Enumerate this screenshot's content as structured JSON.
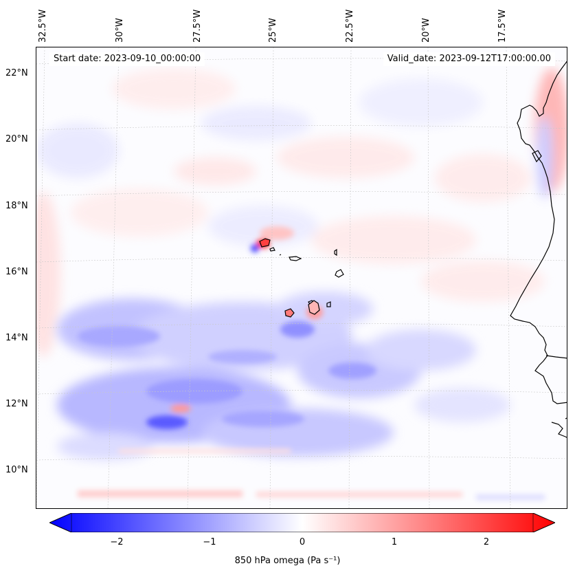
{
  "map": {
    "start_date": "Start date: 2023-09-10_00:00:00",
    "valid_date": "Valid_date: 2023-09-12T17:00:00.00",
    "lon_labels": [
      "32.5°W",
      "30°W",
      "27.5°W",
      "25°W",
      "22.5°W",
      "20°W",
      "17.5°W"
    ],
    "lat_labels": [
      "22°N",
      "20°N",
      "18°N",
      "16°N",
      "14°N",
      "12°N",
      "10°N"
    ],
    "colormap": "bwr",
    "colors": {
      "negative": "#0000ff",
      "zero": "#ffffff",
      "positive": "#ff0000",
      "coast": "#000000"
    }
  },
  "colorbar": {
    "ticks": [
      "−2",
      "−1",
      "0",
      "1",
      "2"
    ],
    "label": "850 hPa omega (Pa s⁻¹)",
    "range": [
      -2.7,
      2.7
    ]
  }
}
